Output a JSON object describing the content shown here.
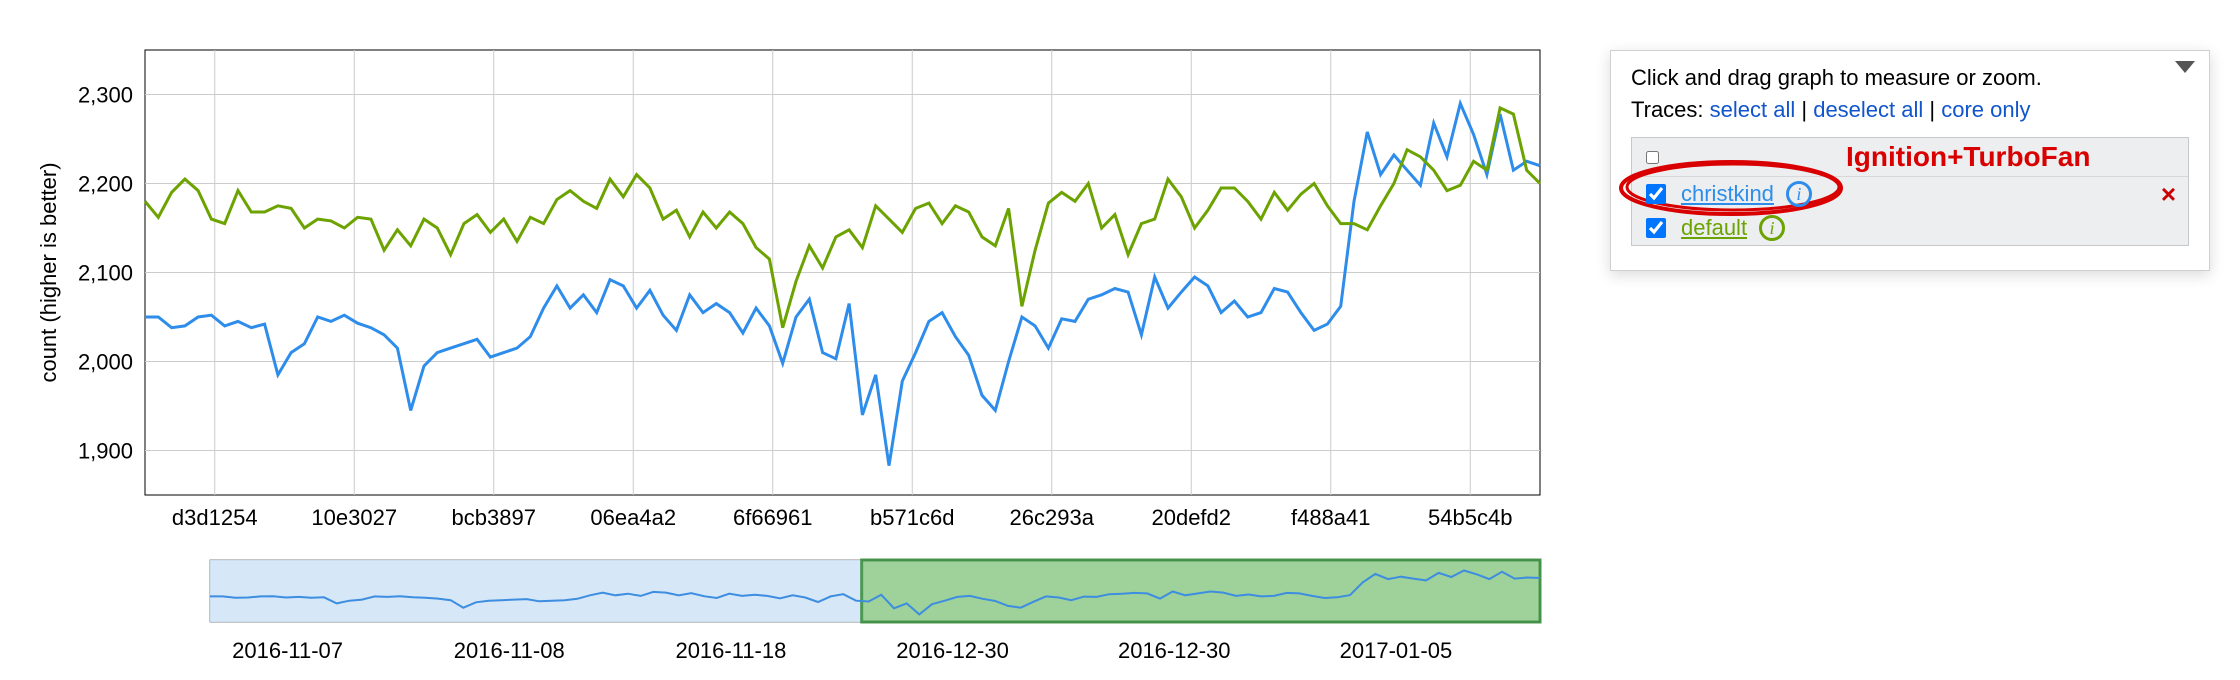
{
  "chart": {
    "type": "line",
    "y_axis": {
      "title": "count (higher is better)",
      "lim": [
        1850,
        2350
      ],
      "ticks": [
        1900,
        2000,
        2100,
        2200,
        2300
      ],
      "tick_labels": [
        "1,900",
        "2,000",
        "2,100",
        "2,200",
        "2,300"
      ],
      "label_fontsize": 22
    },
    "x_axis": {
      "tick_labels": [
        "d3d1254",
        "10e3027",
        "bcb3897",
        "06ea4a2",
        "6f66961",
        "b571c6d",
        "26c293a",
        "20defd2",
        "f488a41",
        "54b5c4b"
      ],
      "label_fontsize": 22
    },
    "grid_color": "#cccccc",
    "background_color": "#ffffff",
    "series": [
      {
        "id": "christkind",
        "color": "#2e8dea",
        "stroke_width": 3,
        "values": [
          2050,
          2050,
          2038,
          2040,
          2050,
          2052,
          2040,
          2045,
          2038,
          2042,
          1985,
          2010,
          2020,
          2050,
          2045,
          2052,
          2043,
          2038,
          2030,
          2015,
          1945,
          1995,
          2010,
          2015,
          2020,
          2025,
          2005,
          2010,
          2015,
          2028,
          2060,
          2085,
          2060,
          2075,
          2055,
          2092,
          2085,
          2060,
          2080,
          2052,
          2035,
          2075,
          2055,
          2065,
          2055,
          2032,
          2060,
          2040,
          1998,
          2050,
          2070,
          2010,
          2003,
          2065,
          1940,
          1985,
          1883,
          1978,
          2010,
          2045,
          2055,
          2028,
          2007,
          1962,
          1945,
          2000,
          2050,
          2040,
          2015,
          2048,
          2045,
          2070,
          2075,
          2082,
          2078,
          2030,
          2095,
          2060,
          2078,
          2095,
          2085,
          2055,
          2068,
          2050,
          2055,
          2082,
          2078,
          2055,
          2035,
          2042,
          2062,
          2180,
          2258,
          2210,
          2232,
          2215,
          2198,
          2268,
          2230,
          2290,
          2255,
          2210,
          2278,
          2215,
          2225,
          2220
        ]
      },
      {
        "id": "default",
        "color": "#6ca300",
        "stroke_width": 3,
        "values": [
          2180,
          2162,
          2190,
          2205,
          2192,
          2160,
          2155,
          2192,
          2168,
          2168,
          2175,
          2172,
          2150,
          2160,
          2158,
          2150,
          2162,
          2160,
          2125,
          2148,
          2130,
          2160,
          2150,
          2120,
          2155,
          2165,
          2145,
          2160,
          2135,
          2162,
          2155,
          2182,
          2192,
          2180,
          2172,
          2205,
          2185,
          2210,
          2195,
          2160,
          2170,
          2140,
          2168,
          2150,
          2168,
          2155,
          2128,
          2115,
          2038,
          2090,
          2130,
          2105,
          2140,
          2148,
          2128,
          2175,
          2160,
          2145,
          2172,
          2178,
          2155,
          2175,
          2168,
          2140,
          2130,
          2172,
          2062,
          2125,
          2178,
          2190,
          2180,
          2200,
          2150,
          2165,
          2120,
          2155,
          2160,
          2205,
          2185,
          2150,
          2170,
          2195,
          2195,
          2180,
          2160,
          2190,
          2170,
          2188,
          2200,
          2175,
          2155,
          2155,
          2148,
          2175,
          2200,
          2238,
          2230,
          2215,
          2192,
          2198,
          2225,
          2215,
          2285,
          2278,
          2215,
          2200
        ]
      }
    ]
  },
  "navigator": {
    "type": "range-selector",
    "background_color": "#ffffff",
    "left_fill": "#cfe3f7",
    "right_fill": "#8fc989",
    "right_stroke": "#2f8a34",
    "line_color": "#3d8de0",
    "split_ratio": 0.49,
    "dates": [
      "2016-11-07",
      "2016-11-08",
      "2016-11-18",
      "2016-12-30",
      "2016-12-30",
      "2017-01-05"
    ]
  },
  "legend": {
    "hint": "Click and drag graph to measure or zoom.",
    "traces_label": "Traces:",
    "links": {
      "select_all": "select all",
      "deselect_all": "deselect all",
      "core_only": "core only"
    },
    "separator": " | ",
    "annotation_text": "Ignition+TurboFan",
    "annotation_color": "#d80000",
    "remove_row_symbol": "×",
    "traces": [
      {
        "id": "christkind",
        "label": "christkind",
        "color": "#2e8dea",
        "checked": true,
        "removable": true
      },
      {
        "id": "default",
        "label": "default",
        "color": "#6ca300",
        "checked": true,
        "removable": false
      }
    ]
  }
}
